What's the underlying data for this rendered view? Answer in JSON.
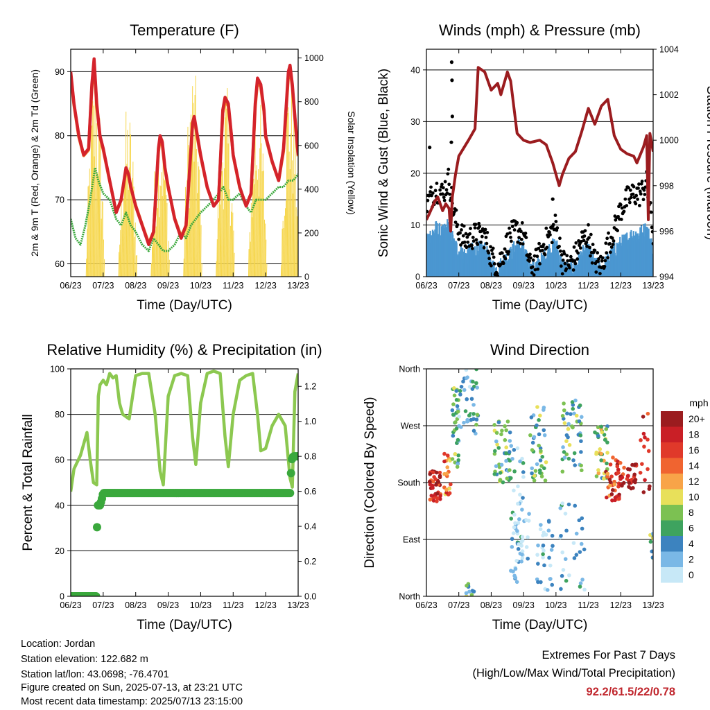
{
  "chart_data": [
    {
      "id": "temp",
      "type": "line",
      "title": "Temperature (F)",
      "xlabel": "Time (Day/UTC)",
      "ylabel": "2m & 9m T (Red, Orange) & 2m Td (Green)",
      "ylabel_right": "Solar Insolation (Yellow)",
      "x_ticks": [
        "06/23",
        "07/23",
        "08/23",
        "09/23",
        "10/23",
        "11/23",
        "12/23",
        "13/23"
      ],
      "xlim": [
        0,
        7
      ],
      "ylim": [
        58,
        93.5
      ],
      "ylim_right": [
        0,
        1040
      ],
      "y_ticks": [
        60,
        70,
        80,
        90
      ],
      "y_ticks_right": [
        0,
        200,
        400,
        600,
        800,
        1000
      ],
      "grid": true,
      "series": [
        {
          "name": "2m T",
          "color": "#d4232b",
          "x": [
            0,
            0.1,
            0.25,
            0.4,
            0.55,
            0.65,
            0.72,
            0.8,
            0.9,
            1.0,
            1.2,
            1.4,
            1.55,
            1.7,
            1.78,
            1.85,
            1.95,
            2.0,
            2.2,
            2.4,
            2.55,
            2.7,
            2.75,
            2.82,
            2.9,
            3.0,
            3.2,
            3.4,
            3.55,
            3.7,
            3.75,
            3.8,
            3.9,
            4.0,
            4.2,
            4.4,
            4.55,
            4.68,
            4.75,
            4.85,
            4.95,
            5.0,
            5.2,
            5.4,
            5.55,
            5.68,
            5.75,
            5.85,
            5.95,
            6.0,
            6.2,
            6.4,
            6.55,
            6.7,
            6.75,
            6.82,
            6.9,
            7.0
          ],
          "values": [
            90,
            85,
            80,
            77,
            78,
            88,
            92,
            85,
            80,
            78,
            73,
            68,
            70,
            75,
            74,
            72,
            70,
            69,
            66,
            63,
            65,
            78,
            80,
            79,
            75,
            72,
            67,
            64,
            66,
            78,
            82,
            83,
            80,
            77,
            72,
            69,
            70,
            84,
            86,
            85,
            80,
            77,
            72,
            69,
            71,
            85,
            89,
            88,
            84,
            80,
            76,
            73,
            78,
            90,
            91,
            88,
            83,
            77
          ]
        },
        {
          "name": "9m T",
          "color": "#f07c27",
          "x": [
            0,
            0.1,
            0.25,
            0.4,
            0.55,
            0.65,
            0.72,
            0.8,
            0.9,
            1.0,
            1.2,
            1.4,
            1.55,
            1.7,
            1.78,
            1.85,
            1.95,
            2.0,
            2.2,
            2.4,
            2.55,
            2.7,
            2.75,
            2.82,
            2.9,
            3.0,
            3.2,
            3.4,
            3.55,
            3.7,
            3.75,
            3.8,
            3.9,
            4.0,
            4.2,
            4.4,
            4.55,
            4.68,
            4.75,
            4.85,
            4.95,
            5.0,
            5.2,
            5.4,
            5.55,
            5.68,
            5.75,
            5.85,
            5.95,
            6.0,
            6.2,
            6.4,
            6.55,
            6.7,
            6.75,
            6.82,
            6.9,
            7.0
          ],
          "values": [
            89.6,
            84.8,
            79.8,
            76.9,
            77.8,
            87.5,
            91.4,
            84.6,
            79.8,
            77.8,
            72.9,
            68.1,
            69.9,
            74.6,
            73.8,
            71.9,
            70,
            69.1,
            66.1,
            63.2,
            65,
            77.5,
            79.5,
            78.6,
            74.8,
            71.9,
            67.1,
            64.2,
            66,
            77.6,
            81.6,
            82.5,
            79.7,
            76.8,
            71.9,
            69.1,
            70,
            83.5,
            85.6,
            84.6,
            79.8,
            76.9,
            71.9,
            69.1,
            70.9,
            84.5,
            88.6,
            87.6,
            83.7,
            79.8,
            75.9,
            73,
            77.6,
            89.4,
            90.5,
            87.6,
            82.7,
            76.8
          ]
        },
        {
          "name": "2m Td",
          "color": "#3aa83c",
          "x": [
            0,
            0.15,
            0.3,
            0.45,
            0.6,
            0.75,
            0.85,
            1.0,
            1.2,
            1.4,
            1.55,
            1.7,
            1.85,
            2.0,
            2.2,
            2.4,
            2.55,
            2.7,
            2.85,
            3.0,
            3.2,
            3.4,
            3.55,
            3.7,
            3.85,
            4.0,
            4.2,
            4.4,
            4.55,
            4.7,
            4.85,
            5.0,
            5.2,
            5.4,
            5.55,
            5.7,
            5.85,
            6.0,
            6.2,
            6.4,
            6.55,
            6.7,
            6.85,
            7.0
          ],
          "values": [
            67,
            64,
            63,
            66,
            70,
            75,
            73,
            71,
            70,
            67,
            66,
            68,
            66,
            65,
            63,
            62,
            64,
            63,
            62,
            62,
            63,
            65,
            64,
            66,
            67,
            68,
            69,
            70,
            71,
            72,
            70,
            70,
            71,
            69,
            68,
            70,
            70,
            70,
            71,
            72,
            72,
            73,
            73,
            74
          ]
        },
        {
          "name": "Solar Insolation",
          "color": "#f6d64b",
          "axis": "right",
          "peaks": [
            [
              0.75,
              980
            ],
            [
              1.75,
              800
            ],
            [
              2.75,
              780
            ],
            [
              3.75,
              1000
            ],
            [
              4.75,
              900
            ],
            [
              5.75,
              870
            ],
            [
              6.75,
              1000
            ]
          ]
        }
      ]
    },
    {
      "id": "wind",
      "type": "line",
      "title": "Winds (mph) & Pressure (mb)",
      "xlabel": "Time (Day/UTC)",
      "ylabel": "Sonic Wind & Gust (Blue, Black)",
      "ylabel_right": "Station Pressure (Maroon)",
      "x_ticks": [
        "06/23",
        "07/23",
        "08/23",
        "09/23",
        "10/23",
        "11/23",
        "12/23",
        "13/23"
      ],
      "xlim": [
        0,
        7
      ],
      "ylim": [
        0,
        44
      ],
      "ylim_right": [
        994,
        1004
      ],
      "y_ticks": [
        0,
        10,
        20,
        30,
        40
      ],
      "y_ticks_right": [
        994,
        996,
        998,
        1000,
        1002,
        1004
      ],
      "grid": true,
      "series": [
        {
          "name": "Pressure",
          "color": "#9b1c1f",
          "axis": "right",
          "x": [
            0,
            0.1,
            0.25,
            0.35,
            0.5,
            0.6,
            0.7,
            0.75,
            0.8,
            0.9,
            1.0,
            1.3,
            1.5,
            1.6,
            1.8,
            2.0,
            2.2,
            2.3,
            2.5,
            2.6,
            2.8,
            3.0,
            3.2,
            3.5,
            3.7,
            3.9,
            4.1,
            4.2,
            4.4,
            4.6,
            4.8,
            5.0,
            5.2,
            5.4,
            5.6,
            5.8,
            6.0,
            6.2,
            6.4,
            6.5,
            6.7,
            6.8,
            6.85,
            6.9,
            7.0
          ],
          "values": [
            996.5,
            996.8,
            997.3,
            997.5,
            996.9,
            997.2,
            997.0,
            996.0,
            997.5,
            998.5,
            999.3,
            1000.0,
            1000.5,
            1003.2,
            1003.0,
            1002.2,
            1002.5,
            1002.0,
            1003.0,
            1002.6,
            1000.3,
            1000.0,
            999.9,
            1000.0,
            999.8,
            999.0,
            998.0,
            998.5,
            999.2,
            999.5,
            1000.4,
            1001.4,
            1000.7,
            1001.5,
            1001.8,
            1000.2,
            999.6,
            999.4,
            999.3,
            999.0,
            999.7,
            1000.2,
            996.5,
            1000.3,
            999.5
          ]
        },
        {
          "name": "Wind",
          "color": "#4b97d1",
          "x": [
            0,
            0.3,
            0.5,
            0.7,
            0.85,
            1.0,
            1.2,
            1.5,
            1.8,
            2.0,
            2.2,
            2.4,
            2.6,
            2.8,
            3.0,
            3.2,
            3.4,
            3.6,
            3.8,
            4.0,
            4.2,
            4.4,
            4.6,
            4.8,
            5.0,
            5.2,
            5.4,
            5.6,
            5.8,
            6.0,
            6.2,
            6.4,
            6.6,
            6.8,
            7.0
          ],
          "values": [
            7,
            9,
            8,
            10,
            6,
            5,
            4,
            5,
            5,
            2,
            1,
            3,
            4,
            6,
            5,
            1,
            2,
            3,
            5,
            6,
            2,
            1,
            2,
            4,
            5,
            2,
            1,
            3,
            5,
            6,
            7,
            8,
            8,
            9,
            5
          ]
        },
        {
          "name": "Gust",
          "color": "#000000",
          "x": [
            0,
            0.3,
            0.5,
            0.7,
            0.85,
            1.0,
            1.2,
            1.5,
            1.8,
            2.0,
            2.2,
            2.4,
            2.6,
            2.8,
            3.0,
            3.2,
            3.4,
            3.6,
            3.8,
            4.0,
            4.2,
            4.4,
            4.6,
            4.8,
            5.0,
            5.2,
            5.4,
            5.6,
            5.8,
            6.0,
            6.2,
            6.4,
            6.6,
            6.8,
            7.0
          ],
          "values": [
            14,
            17,
            16,
            19,
            12,
            9,
            7,
            8,
            8,
            4,
            2,
            5,
            8,
            9,
            8,
            2,
            3,
            6,
            8,
            10,
            3,
            2,
            4,
            7,
            8,
            3,
            2,
            6,
            9,
            13,
            15,
            16,
            16,
            18,
            8
          ]
        }
      ]
    },
    {
      "id": "rh",
      "type": "line",
      "title": "Relative Humidity (%) & Precipitation (in)",
      "xlabel": "Time (Day/UTC)",
      "ylabel": "Percent & Total Rainfall",
      "x_ticks": [
        "06/23",
        "07/23",
        "08/23",
        "09/23",
        "10/23",
        "11/23",
        "12/23",
        "13/23"
      ],
      "xlim": [
        0,
        7
      ],
      "ylim": [
        0,
        100
      ],
      "ylim_right": [
        0,
        1.3
      ],
      "y_ticks": [
        0,
        20,
        40,
        60,
        80,
        100
      ],
      "y_ticks_right": [
        0.0,
        0.2,
        0.4,
        0.6,
        0.8,
        1.0,
        1.2
      ],
      "grid": true,
      "series": [
        {
          "name": "Relative Humidity",
          "color": "#8cc850",
          "x": [
            0,
            0.1,
            0.3,
            0.5,
            0.6,
            0.7,
            0.8,
            0.85,
            0.9,
            1.0,
            1.1,
            1.2,
            1.3,
            1.4,
            1.5,
            1.6,
            1.8,
            2.0,
            2.2,
            2.4,
            2.6,
            2.75,
            2.85,
            3.0,
            3.2,
            3.4,
            3.6,
            3.75,
            3.85,
            4.0,
            4.2,
            4.4,
            4.6,
            4.75,
            4.85,
            5.0,
            5.2,
            5.4,
            5.6,
            5.75,
            5.85,
            6.0,
            6.2,
            6.4,
            6.6,
            6.75,
            6.82,
            6.9,
            7.0
          ],
          "values": [
            46,
            56,
            62,
            72,
            60,
            50,
            49,
            88,
            93,
            95,
            93,
            98,
            96,
            97,
            85,
            80,
            78,
            97,
            98,
            98,
            80,
            55,
            49,
            88,
            97,
            98,
            97,
            70,
            58,
            85,
            98,
            99,
            98,
            70,
            57,
            80,
            95,
            97,
            98,
            80,
            64,
            65,
            75,
            80,
            75,
            52,
            48,
            90,
            98
          ]
        },
        {
          "name": "Total Rainfall",
          "color": "#3aa83c",
          "axis": "right",
          "x": [
            0,
            0.78,
            0.8,
            0.82,
            0.9,
            0.95,
            1.0,
            6.75,
            6.8,
            6.85,
            7.0
          ],
          "values": [
            0,
            0,
            0.27,
            0.52,
            0.52,
            0.55,
            0.59,
            0.59,
            0.78,
            0.8,
            0.8
          ]
        }
      ]
    },
    {
      "id": "wdir",
      "type": "scatter",
      "title": "Wind Direction",
      "xlabel": "Time (Day/UTC)",
      "ylabel": "Direction (Colored By Speed)",
      "x_ticks": [
        "06/23",
        "07/23",
        "08/23",
        "09/23",
        "10/23",
        "11/23",
        "12/23",
        "13/23"
      ],
      "xlim": [
        0,
        7
      ],
      "ylim": [
        0,
        360
      ],
      "y_tick_labels": [
        "North",
        "East",
        "South",
        "West",
        "North"
      ],
      "y_ticks": [
        0,
        90,
        180,
        270,
        360
      ],
      "legend_title": "mph",
      "legend_labels": [
        "20+",
        "18",
        "16",
        "14",
        "12",
        "10",
        "8",
        "6",
        "4",
        "2",
        "0"
      ],
      "legend_colors": [
        "#9b1c1f",
        "#c91f26",
        "#e0392a",
        "#f06430",
        "#f8a448",
        "#e8e05a",
        "#7cc152",
        "#3ea35f",
        "#3c83bf",
        "#7ab8e6",
        "#c7e8f7"
      ],
      "grid": true
    }
  ],
  "info": {
    "location": "Location: Jordan",
    "elevation": "Station elevation: 122.682 m",
    "latlon": "Station lat/lon: 43.0698; -76.4701",
    "created": "Figure created on Sun, 2025-07-13, at 23:21 UTC",
    "recent": "Most recent data timestamp: 2025/07/13 23:15:00"
  },
  "extremes": {
    "line1": "Extremes For Past 7 Days",
    "line2": "(High/Low/Max Wind/Total Precipitation)",
    "values": "92.2/61.5/22/0.78"
  }
}
